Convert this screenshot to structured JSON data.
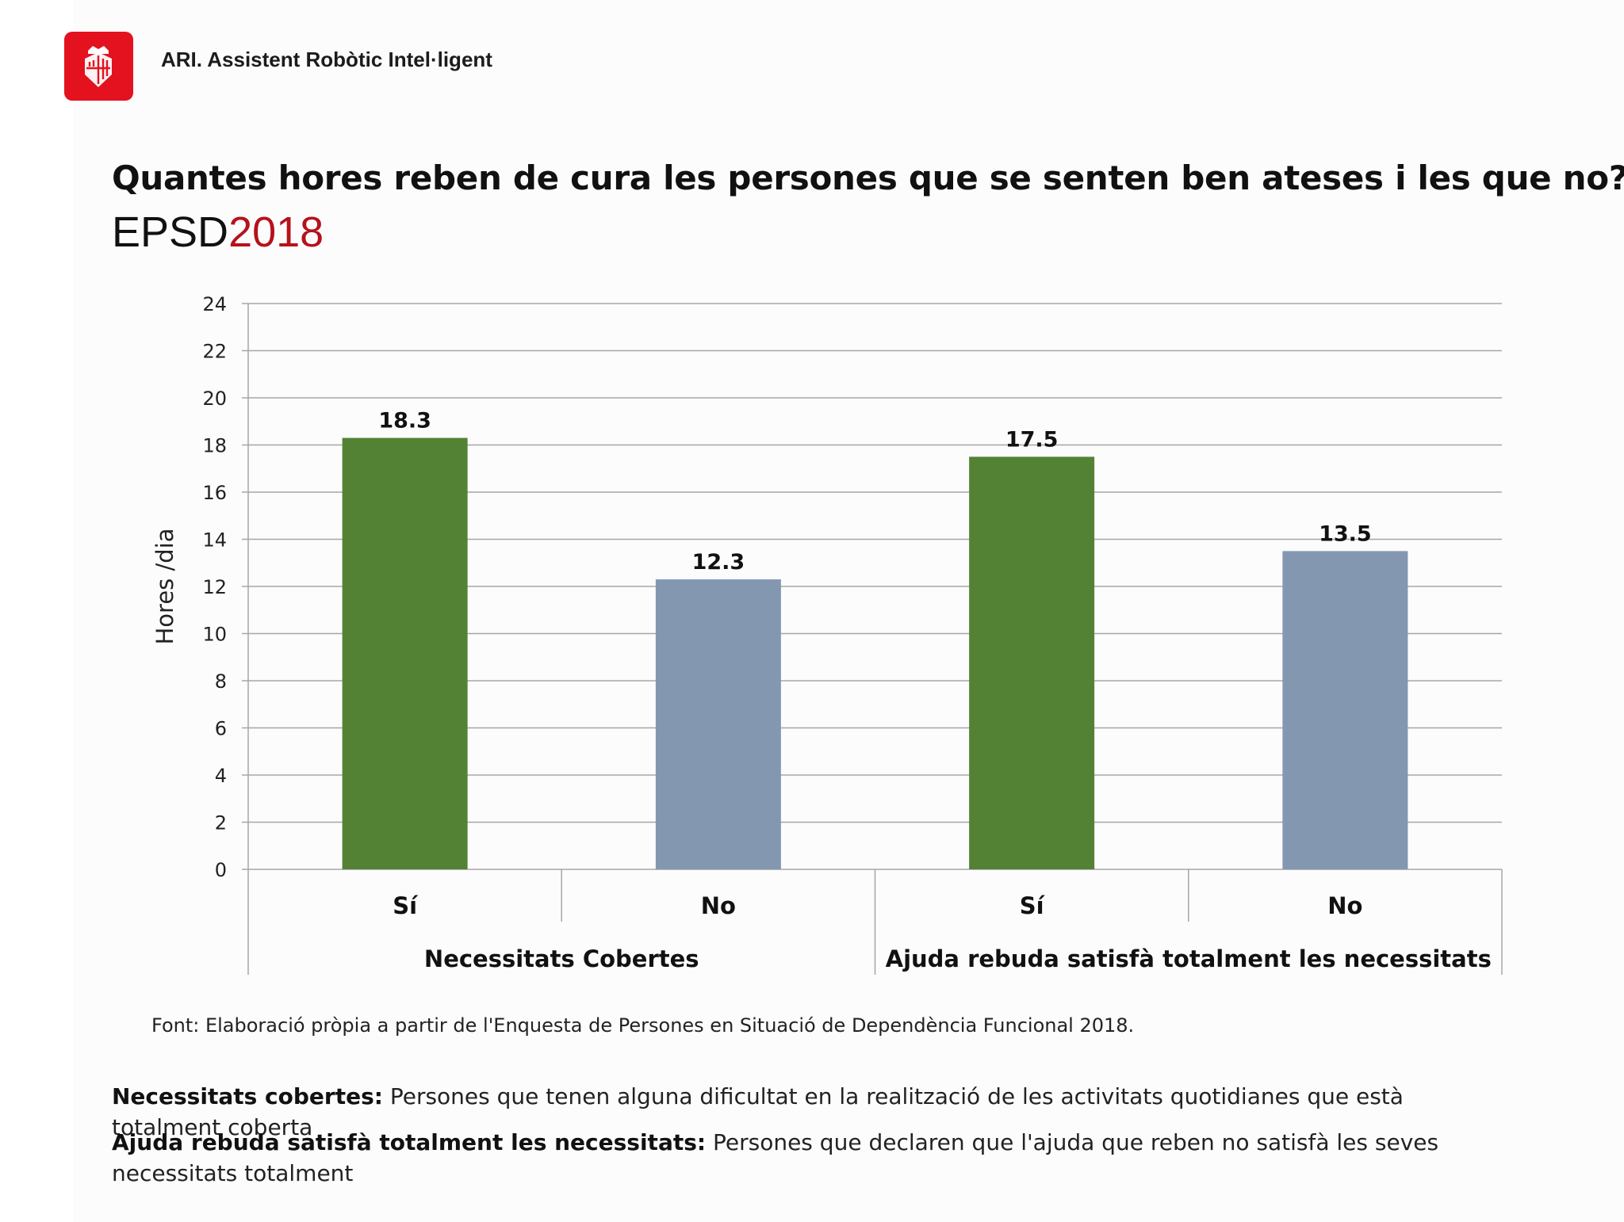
{
  "header": {
    "brand": "ARI. Assistent Robòtic Intel·ligent",
    "logo_icon": "barcelona-coat-of-arms-icon",
    "logo_color": "#e3121e"
  },
  "title": "Quantes hores reben de cura les persones que se senten ben ateses i les que no?",
  "subtitle": {
    "prefix": "EPSD",
    "year": "2018",
    "year_color": "#b5121b"
  },
  "chart_data": {
    "type": "bar",
    "ylabel": "Hores /dia",
    "ylim": [
      0,
      24
    ],
    "ytick_step": 2,
    "grid": true,
    "groups": [
      {
        "label": "Necessitats Cobertes",
        "categories": [
          "Sí",
          "No"
        ]
      },
      {
        "label": "Ajuda rebuda satisfà totalment les necessitats",
        "categories": [
          "Sí",
          "No"
        ]
      }
    ],
    "bars": [
      {
        "group": "Necessitats Cobertes",
        "category": "Sí",
        "value": 18.3,
        "color": "#548235"
      },
      {
        "group": "Necessitats Cobertes",
        "category": "No",
        "value": 12.3,
        "color": "#8497b0"
      },
      {
        "group": "Ajuda rebuda satisfà totalment les necessitats",
        "category": "Sí",
        "value": 17.5,
        "color": "#548235"
      },
      {
        "group": "Ajuda rebuda satisfà totalment les necessitats",
        "category": "No",
        "value": 13.5,
        "color": "#8497b0"
      }
    ]
  },
  "source": "Font: Elaboració pròpia a partir de l'Enquesta de Persones en Situació de Dependència Funcional 2018.",
  "definitions": [
    {
      "term": "Necessitats cobertes:",
      "text": " Persones que tenen alguna dificultat en la realització de les activitats quotidianes que està totalment coberta"
    },
    {
      "term": "Ajuda rebuda satisfà totalment les necessitats:",
      "text": " Persones que declaren que l'ajuda que reben no satisfà les seves necessitats totalment"
    }
  ]
}
